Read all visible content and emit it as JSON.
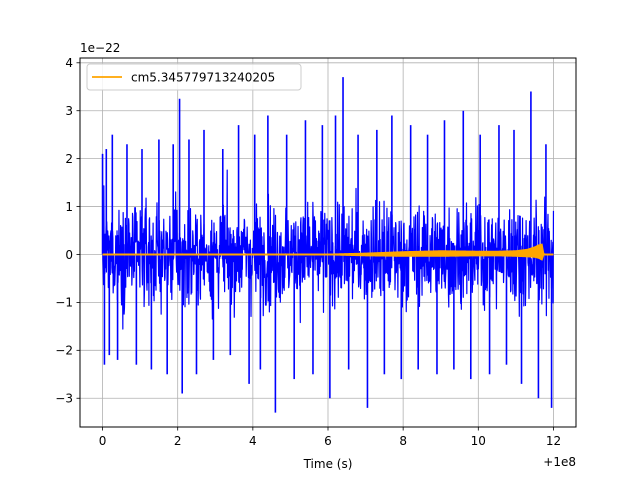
{
  "chart_data": {
    "type": "line",
    "title": "",
    "xlabel": "Time (s)",
    "ylabel": "",
    "x_offset_label": "+1e8",
    "y_scale_label": "1e−22",
    "xlim": [
      -0.6,
      12.6
    ],
    "ylim": [
      -3.6,
      4.1
    ],
    "xticks": [
      0,
      2,
      4,
      6,
      8,
      10,
      12
    ],
    "xtick_labels": [
      "0",
      "2",
      "4",
      "6",
      "8",
      "10",
      "12"
    ],
    "yticks": [
      -3,
      -2,
      -1,
      0,
      1,
      2,
      3,
      4
    ],
    "ytick_labels": [
      "−3",
      "−2",
      "−1",
      "0",
      "1",
      "2",
      "3",
      "4"
    ],
    "grid": true,
    "legend": {
      "position": "upper-left",
      "entries": [
        "cm5.345779713240205"
      ]
    },
    "colors": {
      "strain": "#0000ff",
      "template": "#ffa500",
      "grid": "#b0b0b0"
    },
    "series": [
      {
        "style": "noise",
        "color": "#0000ff",
        "x_range": [
          0,
          12
        ],
        "typical_envelope": [
          -1.6,
          1.4
        ],
        "x": [
          0.0,
          0.05,
          0.1,
          0.18,
          0.26,
          0.4,
          0.65,
          0.9,
          1.05,
          1.3,
          1.5,
          1.72,
          1.88,
          2.05,
          2.12,
          2.3,
          2.5,
          2.7,
          2.95,
          3.2,
          3.4,
          3.62,
          3.9,
          4.05,
          4.2,
          4.4,
          4.6,
          4.9,
          5.1,
          5.4,
          5.6,
          5.85,
          6.05,
          6.2,
          6.4,
          6.55,
          6.8,
          7.05,
          7.3,
          7.5,
          7.7,
          7.95,
          8.2,
          8.4,
          8.65,
          8.9,
          9.1,
          9.35,
          9.6,
          9.8,
          10.05,
          10.3,
          10.55,
          10.75,
          10.95,
          11.15,
          11.4,
          11.6,
          11.8,
          11.95
        ],
        "y": [
          2.1,
          -2.3,
          2.2,
          -2.1,
          2.5,
          -2.2,
          2.3,
          -2.3,
          2.2,
          -2.4,
          2.4,
          -2.5,
          2.3,
          3.25,
          -2.9,
          2.4,
          -2.5,
          2.6,
          -2.2,
          2.2,
          -2.1,
          2.7,
          -2.7,
          2.5,
          -2.4,
          2.9,
          -3.3,
          2.5,
          -2.6,
          2.8,
          -2.5,
          2.7,
          -3.0,
          2.9,
          3.7,
          -2.4,
          2.5,
          -3.2,
          2.6,
          -2.5,
          2.9,
          -2.6,
          2.7,
          -2.4,
          2.5,
          -2.5,
          2.8,
          -2.4,
          3.0,
          -2.6,
          2.5,
          -2.5,
          2.7,
          -2.3,
          2.6,
          -2.7,
          3.4,
          -3.0,
          2.3,
          -3.2
        ]
      },
      {
        "name": "cm5.345779713240205",
        "style": "line",
        "color": "#ffa500",
        "x": [
          0,
          2,
          4,
          6,
          7,
          8,
          9,
          10,
          10.5,
          11,
          11.3,
          11.5,
          11.6,
          11.7,
          11.75,
          11.9,
          12.0
        ],
        "y": [
          0,
          0,
          0,
          0,
          0,
          0.01,
          0.02,
          0.02,
          0.02,
          0.02,
          0.03,
          0.05,
          0.06,
          0.05,
          0.0,
          0.0,
          0.0
        ],
        "envelope": [
          0,
          0,
          0,
          0.01,
          0.03,
          0.05,
          0.06,
          0.05,
          0.05,
          0.06,
          0.08,
          0.11,
          0.14,
          0.17,
          0.0,
          0.0,
          0.0
        ]
      }
    ]
  }
}
